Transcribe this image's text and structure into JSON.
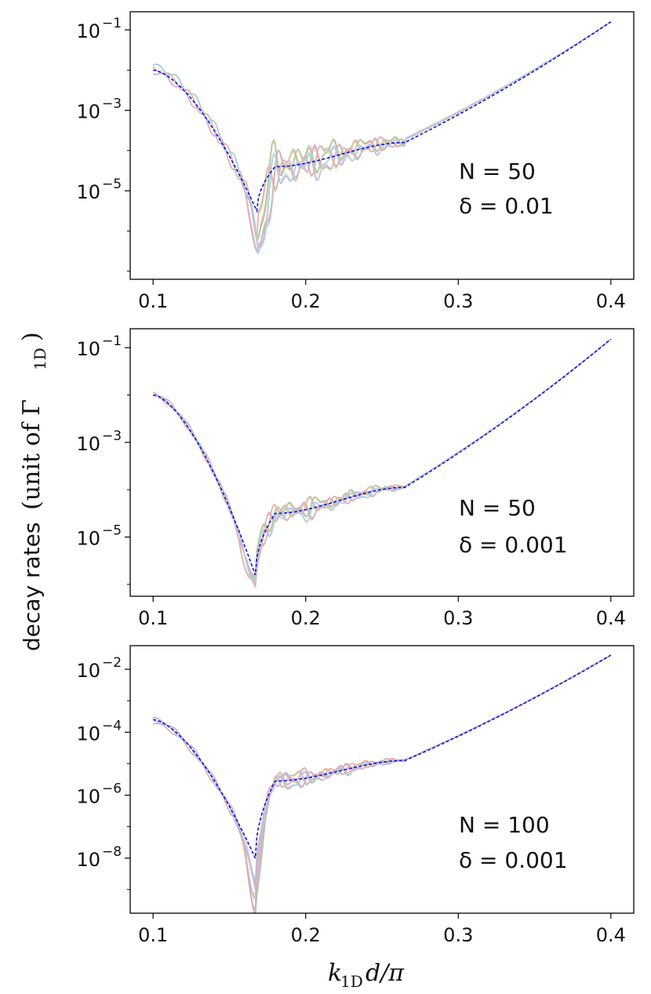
{
  "figure": {
    "ylabel_text": "decay rates",
    "ylabel_unit": "(unit of Γ",
    "ylabel_sub": "1D",
    "ylabel_close": ")",
    "xlabel_k": "k",
    "xlabel_sub": "1D",
    "xlabel_rest": "d/π"
  },
  "chart_data": [
    {
      "type": "line",
      "annotation": [
        "N = 50",
        "δ = 0.01"
      ],
      "xticks": [
        "0.1",
        "0.2",
        "0.3",
        "0.4"
      ],
      "xtick_values": [
        0.1,
        0.2,
        0.3,
        0.4
      ],
      "yticks": [
        {
          "base": "10",
          "exp": "−1",
          "value": -1
        },
        {
          "base": "10",
          "exp": "−3",
          "value": -3
        },
        {
          "base": "10",
          "exp": "−5",
          "value": -5
        }
      ],
      "xlim": [
        0.085,
        0.415
      ],
      "ylog_lim": [
        -7.2,
        -0.55
      ],
      "model": {
        "x0": 0.1,
        "y0": -2.0,
        "xm": 0.168,
        "ym": -5.5,
        "xp": 0.18,
        "yp": -4.4,
        "xf": 0.265,
        "yf": -3.8,
        "x1": 0.4,
        "y1": -0.8
      },
      "realizations": {
        "count": 10,
        "noise": 0.55,
        "depth": 1.1,
        "spread": 0.35
      },
      "colors": [
        "#e88d8d",
        "#f2a470",
        "#e6cf80",
        "#9fd68f",
        "#8fd6c4",
        "#9cc7e6",
        "#b8a8dc",
        "#e8a8d0",
        "#f0b0a0",
        "#a8d8e8"
      ],
      "x_log10_model_points": [
        [
          0.1,
          -2.0
        ],
        [
          0.168,
          -5.5
        ],
        [
          0.18,
          -4.4
        ],
        [
          0.265,
          -3.8
        ],
        [
          0.4,
          -0.8
        ]
      ]
    },
    {
      "type": "line",
      "annotation": [
        "N = 50",
        "δ = 0.001"
      ],
      "xticks": [
        "0.1",
        "0.2",
        "0.3",
        "0.4"
      ],
      "xtick_values": [
        0.1,
        0.2,
        0.3,
        0.4
      ],
      "yticks": [
        {
          "base": "10",
          "exp": "−1",
          "value": -1
        },
        {
          "base": "10",
          "exp": "−3",
          "value": -3
        },
        {
          "base": "10",
          "exp": "−5",
          "value": -5
        }
      ],
      "xlim": [
        0.085,
        0.415
      ],
      "ylog_lim": [
        -6.25,
        -0.6
      ],
      "model": {
        "x0": 0.1,
        "y0": -2.0,
        "xm": 0.167,
        "ym": -5.8,
        "xp": 0.18,
        "yp": -4.5,
        "xf": 0.265,
        "yf": -3.95,
        "x1": 0.4,
        "y1": -0.82
      },
      "realizations": {
        "count": 10,
        "noise": 0.25,
        "depth": 0.35,
        "spread": 0.12
      },
      "colors": [
        "#e88d8d",
        "#f2a470",
        "#e6cf80",
        "#9fd68f",
        "#8fd6c4",
        "#9cc7e6",
        "#b8a8dc",
        "#e8a8d0",
        "#f0b0a0",
        "#a8d8e8"
      ],
      "x_log10_model_points": [
        [
          0.1,
          -2.0
        ],
        [
          0.167,
          -5.8
        ],
        [
          0.18,
          -4.5
        ],
        [
          0.265,
          -3.95
        ],
        [
          0.4,
          -0.82
        ]
      ]
    },
    {
      "type": "line",
      "annotation": [
        "N = 100",
        "δ = 0.001"
      ],
      "xticks": [
        "0.1",
        "0.2",
        "0.3",
        "0.4"
      ],
      "xtick_values": [
        0.1,
        0.2,
        0.3,
        0.4
      ],
      "yticks": [
        {
          "base": "10",
          "exp": "−2",
          "value": -2
        },
        {
          "base": "10",
          "exp": "−4",
          "value": -4
        },
        {
          "base": "10",
          "exp": "−6",
          "value": -6
        },
        {
          "base": "10",
          "exp": "−8",
          "value": -8
        }
      ],
      "xlim": [
        0.085,
        0.415
      ],
      "ylog_lim": [
        -9.75,
        -1.25
      ],
      "model": {
        "x0": 0.1,
        "y0": -3.6,
        "xm": 0.167,
        "ym": -8.0,
        "xp": 0.18,
        "yp": -5.55,
        "xf": 0.265,
        "yf": -4.9,
        "x1": 0.4,
        "y1": -1.55
      },
      "realizations": {
        "count": 11,
        "noise": 0.3,
        "depth": 1.35,
        "spread": 0.3
      },
      "colors": [
        "#e88d8d",
        "#f2a470",
        "#e6cf80",
        "#9fd68f",
        "#8fd6c4",
        "#9cc7e6",
        "#b8a8dc",
        "#e8a8d0",
        "#f0b0a0",
        "#a8d8e8",
        "#c8b0e0"
      ],
      "x_log10_model_points": [
        [
          0.1,
          -3.6
        ],
        [
          0.167,
          -8.0
        ],
        [
          0.18,
          -5.55
        ],
        [
          0.265,
          -4.9
        ],
        [
          0.4,
          -1.55
        ]
      ]
    }
  ]
}
